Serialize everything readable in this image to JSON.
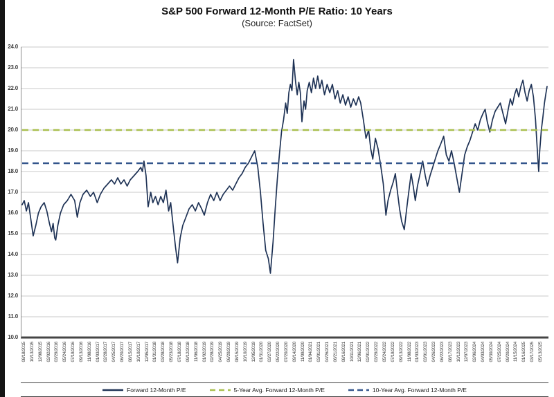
{
  "header": {
    "title": "S&P 500 Forward 12-Month P/E Ratio: 10 Years",
    "subtitle": "(Source: FactSet)"
  },
  "chart_data": {
    "type": "line",
    "title": "S&P 500 Forward 12-Month P/E Ratio: 10 Years",
    "subtitle": "(Source: FactSet)",
    "xlabel": "",
    "ylabel": "",
    "ylim": [
      10.0,
      24.0
    ],
    "ytick_step": 1.0,
    "ytick_labels": [
      "10.0",
      "11.0",
      "12.0",
      "13.0",
      "14.0",
      "15.0",
      "16.0",
      "17.0",
      "18.0",
      "19.0",
      "20.0",
      "21.0",
      "22.0",
      "23.0",
      "24.0"
    ],
    "grid": "horizontal-only",
    "legend_position": "bottom",
    "colors": {
      "line": "#1e3255",
      "avg5": "#a9bf4f",
      "avg10": "#33558c",
      "gridline": "#c9c9c9",
      "axis": "#4d4d4d"
    },
    "x_tick_labels": [
      "08/18/2015",
      "10/13/2015",
      "12/08/2015",
      "02/02/2016",
      "03/29/2016",
      "05/24/2016",
      "07/19/2016",
      "09/13/2016",
      "11/08/2016",
      "01/03/2017",
      "02/28/2017",
      "04/25/2017",
      "06/20/2017",
      "08/15/2017",
      "10/10/2017",
      "12/05/2017",
      "01/31/2018",
      "03/28/2018",
      "05/23/2018",
      "07/18/2018",
      "09/12/2018",
      "11/06/2018",
      "01/02/2019",
      "02/28/2019",
      "04/25/2019",
      "06/20/2019",
      "08/15/2019",
      "10/10/2019",
      "12/05/2019",
      "01/31/2020",
      "03/27/2020",
      "05/22/2020",
      "07/20/2020",
      "09/14/2020",
      "11/09/2020",
      "01/04/2021",
      "03/01/2021",
      "04/26/2021",
      "06/21/2021",
      "08/16/2021",
      "10/11/2021",
      "12/06/2021",
      "02/01/2022",
      "03/29/2022",
      "05/24/2022",
      "07/19/2022",
      "09/13/2022",
      "11/08/2022",
      "01/03/2023",
      "03/01/2023",
      "04/26/2023",
      "06/22/2023",
      "08/17/2023",
      "10/12/2023",
      "12/07/2023",
      "02/06/2024",
      "04/03/2024",
      "05/30/2024",
      "07/25/2024",
      "09/20/2024",
      "11/15/2024",
      "01/16/2025",
      "03/17/2025",
      "05/13/2025"
    ],
    "series": [
      {
        "name": "Forward 12-Month P/E",
        "kind": "line",
        "style": "solid",
        "color": "#1e3255",
        "points": [
          [
            0.0,
            16.4
          ],
          [
            0.004,
            16.6
          ],
          [
            0.008,
            16.1
          ],
          [
            0.012,
            16.5
          ],
          [
            0.016,
            15.8
          ],
          [
            0.021,
            14.9
          ],
          [
            0.026,
            15.4
          ],
          [
            0.031,
            16.0
          ],
          [
            0.036,
            16.3
          ],
          [
            0.042,
            16.5
          ],
          [
            0.047,
            16.1
          ],
          [
            0.052,
            15.5
          ],
          [
            0.056,
            15.1
          ],
          [
            0.059,
            15.5
          ],
          [
            0.062,
            14.8
          ],
          [
            0.064,
            14.7
          ],
          [
            0.068,
            15.4
          ],
          [
            0.073,
            16.0
          ],
          [
            0.079,
            16.4
          ],
          [
            0.086,
            16.6
          ],
          [
            0.093,
            16.9
          ],
          [
            0.1,
            16.6
          ],
          [
            0.105,
            15.8
          ],
          [
            0.11,
            16.5
          ],
          [
            0.116,
            16.9
          ],
          [
            0.123,
            17.1
          ],
          [
            0.13,
            16.8
          ],
          [
            0.136,
            17.0
          ],
          [
            0.143,
            16.5
          ],
          [
            0.149,
            16.9
          ],
          [
            0.156,
            17.2
          ],
          [
            0.163,
            17.4
          ],
          [
            0.17,
            17.6
          ],
          [
            0.176,
            17.4
          ],
          [
            0.182,
            17.7
          ],
          [
            0.188,
            17.4
          ],
          [
            0.194,
            17.6
          ],
          [
            0.2,
            17.3
          ],
          [
            0.206,
            17.6
          ],
          [
            0.213,
            17.8
          ],
          [
            0.22,
            18.0
          ],
          [
            0.226,
            18.2
          ],
          [
            0.229,
            18.0
          ],
          [
            0.232,
            18.5
          ],
          [
            0.236,
            17.8
          ],
          [
            0.24,
            16.3
          ],
          [
            0.245,
            17.0
          ],
          [
            0.249,
            16.5
          ],
          [
            0.254,
            16.8
          ],
          [
            0.259,
            16.4
          ],
          [
            0.264,
            16.8
          ],
          [
            0.269,
            16.5
          ],
          [
            0.274,
            17.1
          ],
          [
            0.279,
            16.1
          ],
          [
            0.283,
            16.5
          ],
          [
            0.288,
            15.3
          ],
          [
            0.292,
            14.4
          ],
          [
            0.296,
            13.6
          ],
          [
            0.301,
            14.8
          ],
          [
            0.306,
            15.4
          ],
          [
            0.312,
            15.8
          ],
          [
            0.318,
            16.2
          ],
          [
            0.324,
            16.4
          ],
          [
            0.33,
            16.1
          ],
          [
            0.336,
            16.5
          ],
          [
            0.342,
            16.2
          ],
          [
            0.347,
            15.9
          ],
          [
            0.353,
            16.5
          ],
          [
            0.359,
            16.9
          ],
          [
            0.365,
            16.6
          ],
          [
            0.371,
            17.0
          ],
          [
            0.377,
            16.6
          ],
          [
            0.383,
            16.9
          ],
          [
            0.389,
            17.1
          ],
          [
            0.395,
            17.3
          ],
          [
            0.401,
            17.1
          ],
          [
            0.407,
            17.4
          ],
          [
            0.413,
            17.7
          ],
          [
            0.419,
            17.9
          ],
          [
            0.425,
            18.2
          ],
          [
            0.431,
            18.4
          ],
          [
            0.437,
            18.7
          ],
          [
            0.443,
            19.0
          ],
          [
            0.449,
            18.2
          ],
          [
            0.454,
            17.0
          ],
          [
            0.459,
            15.5
          ],
          [
            0.464,
            14.2
          ],
          [
            0.469,
            13.8
          ],
          [
            0.473,
            13.1
          ],
          [
            0.478,
            14.6
          ],
          [
            0.482,
            16.2
          ],
          [
            0.486,
            17.6
          ],
          [
            0.49,
            18.8
          ],
          [
            0.494,
            19.9
          ],
          [
            0.498,
            20.5
          ],
          [
            0.502,
            21.3
          ],
          [
            0.505,
            20.8
          ],
          [
            0.508,
            21.8
          ],
          [
            0.511,
            22.2
          ],
          [
            0.514,
            21.9
          ],
          [
            0.517,
            23.4
          ],
          [
            0.521,
            22.3
          ],
          [
            0.524,
            21.7
          ],
          [
            0.527,
            22.3
          ],
          [
            0.53,
            21.8
          ],
          [
            0.533,
            20.4
          ],
          [
            0.537,
            21.4
          ],
          [
            0.54,
            21.0
          ],
          [
            0.543,
            21.9
          ],
          [
            0.547,
            22.3
          ],
          [
            0.551,
            21.8
          ],
          [
            0.555,
            22.5
          ],
          [
            0.559,
            22.0
          ],
          [
            0.563,
            22.6
          ],
          [
            0.567,
            22.0
          ],
          [
            0.571,
            22.4
          ],
          [
            0.576,
            21.7
          ],
          [
            0.581,
            22.2
          ],
          [
            0.586,
            21.8
          ],
          [
            0.591,
            22.2
          ],
          [
            0.596,
            21.5
          ],
          [
            0.601,
            21.9
          ],
          [
            0.606,
            21.3
          ],
          [
            0.611,
            21.7
          ],
          [
            0.616,
            21.2
          ],
          [
            0.621,
            21.6
          ],
          [
            0.626,
            21.1
          ],
          [
            0.631,
            21.5
          ],
          [
            0.636,
            21.2
          ],
          [
            0.641,
            21.6
          ],
          [
            0.645,
            21.3
          ],
          [
            0.65,
            20.5
          ],
          [
            0.655,
            19.6
          ],
          [
            0.66,
            20.0
          ],
          [
            0.664,
            19.1
          ],
          [
            0.668,
            18.6
          ],
          [
            0.673,
            19.6
          ],
          [
            0.678,
            19.1
          ],
          [
            0.683,
            18.3
          ],
          [
            0.688,
            17.4
          ],
          [
            0.693,
            15.9
          ],
          [
            0.697,
            16.6
          ],
          [
            0.702,
            17.1
          ],
          [
            0.707,
            17.5
          ],
          [
            0.711,
            17.9
          ],
          [
            0.715,
            17.0
          ],
          [
            0.719,
            16.2
          ],
          [
            0.723,
            15.6
          ],
          [
            0.728,
            15.2
          ],
          [
            0.733,
            16.3
          ],
          [
            0.737,
            17.1
          ],
          [
            0.741,
            17.9
          ],
          [
            0.745,
            17.3
          ],
          [
            0.749,
            16.6
          ],
          [
            0.753,
            17.3
          ],
          [
            0.758,
            17.9
          ],
          [
            0.763,
            18.5
          ],
          [
            0.768,
            17.8
          ],
          [
            0.772,
            17.3
          ],
          [
            0.777,
            17.8
          ],
          [
            0.782,
            18.2
          ],
          [
            0.787,
            18.6
          ],
          [
            0.792,
            19.0
          ],
          [
            0.797,
            19.3
          ],
          [
            0.803,
            19.7
          ],
          [
            0.808,
            18.8
          ],
          [
            0.813,
            18.5
          ],
          [
            0.818,
            19.0
          ],
          [
            0.823,
            18.4
          ],
          [
            0.828,
            17.7
          ],
          [
            0.833,
            17.0
          ],
          [
            0.838,
            17.9
          ],
          [
            0.843,
            18.8
          ],
          [
            0.848,
            19.2
          ],
          [
            0.853,
            19.5
          ],
          [
            0.858,
            19.9
          ],
          [
            0.863,
            20.3
          ],
          [
            0.868,
            20.0
          ],
          [
            0.873,
            20.5
          ],
          [
            0.878,
            20.8
          ],
          [
            0.882,
            21.0
          ],
          [
            0.886,
            20.4
          ],
          [
            0.891,
            19.9
          ],
          [
            0.896,
            20.5
          ],
          [
            0.901,
            20.9
          ],
          [
            0.906,
            21.1
          ],
          [
            0.911,
            21.3
          ],
          [
            0.916,
            20.8
          ],
          [
            0.921,
            20.3
          ],
          [
            0.926,
            21.0
          ],
          [
            0.93,
            21.5
          ],
          [
            0.934,
            21.2
          ],
          [
            0.938,
            21.7
          ],
          [
            0.942,
            22.0
          ],
          [
            0.946,
            21.6
          ],
          [
            0.95,
            22.1
          ],
          [
            0.954,
            22.4
          ],
          [
            0.958,
            21.8
          ],
          [
            0.962,
            21.4
          ],
          [
            0.966,
            21.9
          ],
          [
            0.97,
            22.2
          ],
          [
            0.974,
            21.6
          ],
          [
            0.978,
            20.5
          ],
          [
            0.981,
            19.2
          ],
          [
            0.984,
            18.0
          ],
          [
            0.986,
            19.0
          ],
          [
            0.989,
            20.0
          ],
          [
            0.992,
            20.6
          ],
          [
            0.995,
            21.3
          ],
          [
            0.998,
            21.8
          ],
          [
            1.0,
            22.1
          ]
        ]
      },
      {
        "name": "5-Year Avg. Forward 12-Month P/E",
        "kind": "hline",
        "style": "dashed",
        "color": "#a9bf4f",
        "value": 20.0
      },
      {
        "name": "10-Year Avg. Forward 12-Month P/E",
        "kind": "hline",
        "style": "dashed",
        "color": "#33558c",
        "value": 18.4
      }
    ]
  }
}
